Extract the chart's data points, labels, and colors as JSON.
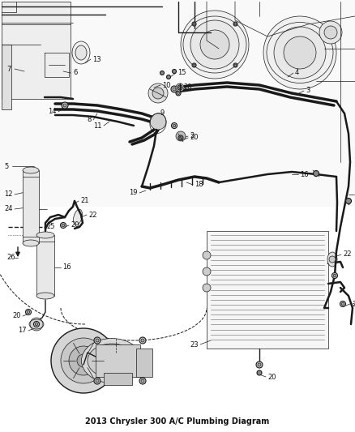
{
  "title": "2013 Chrysler 300 A/C Plumbing Diagram",
  "bg_color": "#ffffff",
  "line_color": "#1a1a1a",
  "label_color": "#111111",
  "fig_width": 4.38,
  "fig_height": 5.33,
  "dpi": 100
}
